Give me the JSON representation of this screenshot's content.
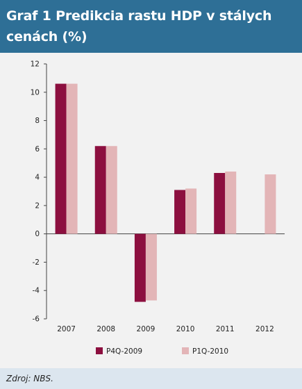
{
  "title": "Graf 1 Predikcia rastu HDP v stálych cenách (%)",
  "source": "Zdroj: NBS.",
  "colors": {
    "header": "#2e6f96",
    "chart_bg": "#f2f2f2",
    "footer": "#dce6ef",
    "series1": "#8c0f3f",
    "series2": "#e3b5b7"
  },
  "chart_data": {
    "type": "bar",
    "categories": [
      "2007",
      "2008",
      "2009",
      "2010",
      "2011",
      "2012"
    ],
    "series": [
      {
        "name": "P4Q-2009",
        "values": [
          10.6,
          6.2,
          -4.8,
          3.1,
          4.3,
          null
        ]
      },
      {
        "name": "P1Q-2010",
        "values": [
          10.6,
          6.2,
          -4.7,
          3.2,
          4.4,
          4.2
        ]
      }
    ],
    "ylim": [
      -6,
      12
    ],
    "yticks": [
      -6,
      -4,
      -2,
      0,
      2,
      4,
      6,
      8,
      10,
      12
    ],
    "grid": false,
    "legend_position": "bottom"
  }
}
